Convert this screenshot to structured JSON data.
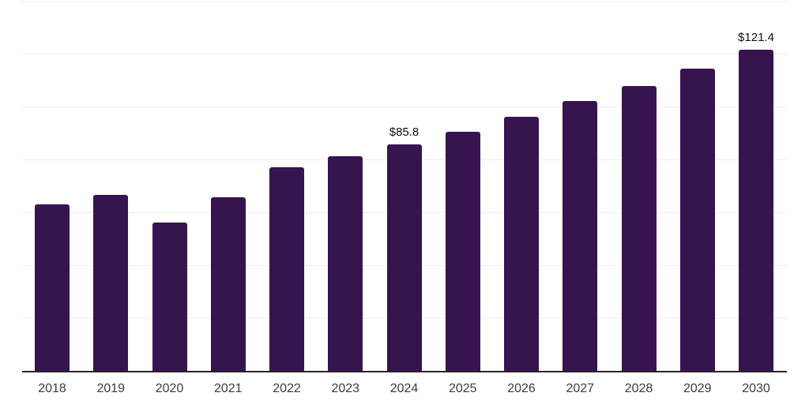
{
  "chart_data": {
    "type": "bar",
    "title": "",
    "xlabel": "",
    "ylabel": "",
    "categories": [
      "2018",
      "2019",
      "2020",
      "2021",
      "2022",
      "2023",
      "2024",
      "2025",
      "2026",
      "2027",
      "2028",
      "2029",
      "2030"
    ],
    "values": [
      62.9,
      66.7,
      56.2,
      65.7,
      76.9,
      81.3,
      85.8,
      90.5,
      96.0,
      102.0,
      107.9,
      114.4,
      121.4
    ],
    "data_labels": [
      "",
      "",
      "",
      "",
      "",
      "",
      "$85.8",
      "",
      "",
      "",
      "",
      "",
      "$121.4"
    ],
    "ylim": [
      0,
      140
    ],
    "grid_step": 20,
    "grid": "horizontal-only",
    "legend": "none",
    "colors": {
      "bar": "#371350",
      "gridline": "#eeeeee",
      "axis_line": "#262626",
      "tick_label": "#3c3c3c",
      "value_label": "#111111",
      "background": "#ffffff"
    }
  }
}
